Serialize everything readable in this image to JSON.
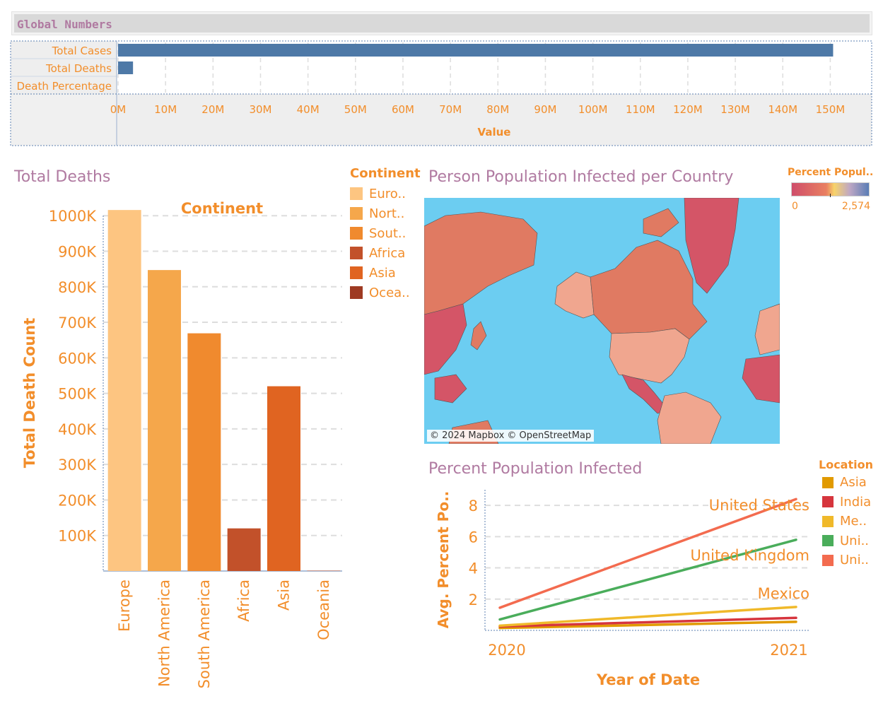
{
  "global_numbers": {
    "title": "Global Numbers",
    "xlabel": "Value"
  },
  "total_deaths": {
    "title": "Total Deaths",
    "legend_title": "Continent",
    "legend_items": [
      {
        "label": "Euro..",
        "color": "#fdc581"
      },
      {
        "label": "Nort..",
        "color": "#f5a74b"
      },
      {
        "label": "Sout..",
        "color": "#f08a2e"
      },
      {
        "label": "Africa",
        "color": "#c2512a"
      },
      {
        "label": "Asia",
        "color": "#e06421"
      },
      {
        "label": "Ocea..",
        "color": "#9e3a22"
      }
    ]
  },
  "map": {
    "title": "Person Population Infected per Country",
    "legend_title": "Percent Popul..",
    "legend_min": "0",
    "legend_max": "2,574",
    "attribution": "© 2024 Mapbox © OpenStreetMap",
    "colors": {
      "ocean": "#6ccdf1",
      "low": "#d45567",
      "mid": "#e07a62",
      "high": "#f0a68f"
    }
  },
  "percent_infected": {
    "title": "Percent Population Infected",
    "legend_title": "Location",
    "legend_items": [
      {
        "label": "Asia",
        "color": "#e19a00"
      },
      {
        "label": "India",
        "color": "#d6353d"
      },
      {
        "label": "Me..",
        "color": "#f0b92a"
      },
      {
        "label": "Uni..",
        "color": "#4aad5b"
      },
      {
        "label": "Uni..",
        "color": "#f36b4f"
      }
    ]
  },
  "chart_data": [
    {
      "type": "bar",
      "orientation": "horizontal",
      "title": "Global Numbers",
      "categories": [
        "Total Cases",
        "Total Deaths",
        "Death Percentage"
      ],
      "values": [
        150600000,
        3150000,
        2.09
      ],
      "xlabel": "Value",
      "xlim": [
        0,
        155000000
      ],
      "xticks": [
        0,
        10000000,
        20000000,
        30000000,
        40000000,
        50000000,
        60000000,
        70000000,
        80000000,
        90000000,
        100000000,
        110000000,
        120000000,
        130000000,
        140000000,
        150000000
      ],
      "xtick_labels": [
        "0M",
        "10M",
        "20M",
        "30M",
        "40M",
        "50M",
        "60M",
        "70M",
        "80M",
        "90M",
        "100M",
        "110M",
        "120M",
        "130M",
        "140M",
        "150M"
      ],
      "bar_color": "#4e79a7",
      "grid": true
    },
    {
      "type": "bar",
      "title": "Continent",
      "categories": [
        "Europe",
        "North America",
        "South America",
        "Africa",
        "Asia",
        "Oceania"
      ],
      "values": [
        1016000,
        847000,
        669000,
        120000,
        520000,
        1000
      ],
      "colors": [
        "#fdc581",
        "#f5a74b",
        "#f08a2e",
        "#c2512a",
        "#e06421",
        "#9e3a22"
      ],
      "ylabel": "Total Death Count",
      "ylim": [
        0,
        1070000
      ],
      "yticks": [
        100000,
        200000,
        300000,
        400000,
        500000,
        600000,
        700000,
        800000,
        900000,
        1000000
      ],
      "ytick_labels": [
        "100K",
        "200K",
        "300K",
        "400K",
        "500K",
        "600K",
        "700K",
        "800K",
        "900K",
        "1000K"
      ],
      "grid": true
    },
    {
      "type": "line",
      "x": [
        2020,
        2021
      ],
      "xtick_labels": [
        "2020",
        "2021"
      ],
      "xlabel": "Year of Date",
      "ylabel": "Avg. Percent Po..",
      "ylim": [
        0,
        9
      ],
      "yticks": [
        2,
        4,
        6,
        8
      ],
      "ytick_labels": [
        "2",
        "4",
        "6",
        "8"
      ],
      "series": [
        {
          "name": "Asia",
          "values": [
            0.15,
            0.55
          ],
          "color": "#e19a00"
        },
        {
          "name": "India",
          "values": [
            0.25,
            0.8
          ],
          "color": "#d6353d"
        },
        {
          "name": "Mexico",
          "values": [
            0.3,
            1.5
          ],
          "color": "#f0b92a"
        },
        {
          "name": "United Kingdom",
          "values": [
            0.7,
            5.8
          ],
          "color": "#4aad5b"
        },
        {
          "name": "United States",
          "values": [
            1.45,
            8.4
          ],
          "color": "#f36b4f"
        }
      ],
      "line_labels": [
        "United States",
        "United Kingdom",
        "Mexico"
      ],
      "grid": true
    }
  ]
}
